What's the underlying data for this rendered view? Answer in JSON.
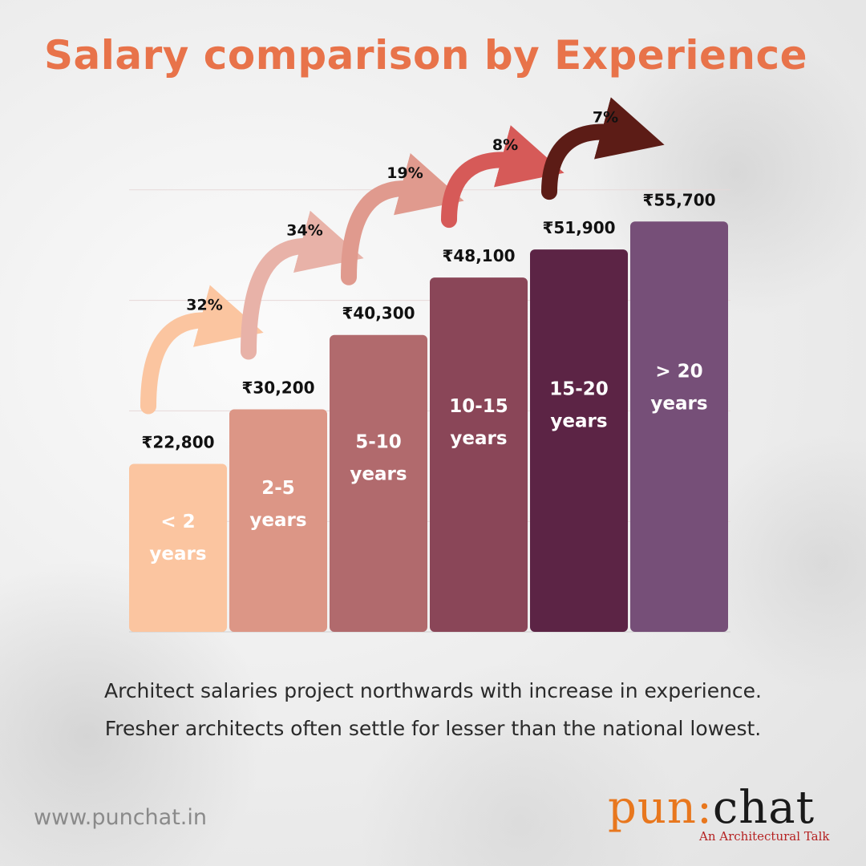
{
  "title": "Salary comparison by Experience",
  "caption": {
    "line1": "Architect salaries project northwards with increase in experience.",
    "line2": "Fresher architects often settle for lesser than the national lowest."
  },
  "footer": {
    "website": "www.punchat.in",
    "logo_pun": "pun",
    "logo_sep": ":",
    "logo_chat": "chat",
    "logo_subtitle": "An Architectural Talk"
  },
  "colors": {
    "title": "#e8734a",
    "bars": [
      "#fbc5a0",
      "#dc9686",
      "#b16a6d",
      "#8a4658",
      "#5c2445",
      "#764f78"
    ],
    "arrows": [
      "#fbc5a0",
      "#e8b2a8",
      "#e09a8e",
      "#d65a58",
      "#5c1c16"
    ]
  },
  "chart_data": {
    "type": "bar",
    "categories": [
      [
        "< 2",
        "years"
      ],
      [
        "2-5",
        "years"
      ],
      [
        "5-10",
        "years"
      ],
      [
        "10-15",
        "years"
      ],
      [
        "15-20",
        "years"
      ],
      [
        "> 20",
        "years"
      ]
    ],
    "values": [
      22800,
      30200,
      40300,
      48100,
      51900,
      55700
    ],
    "value_labels": [
      "₹22,800",
      "₹30,200",
      "₹40,300",
      "₹48,100",
      "₹51,900",
      "₹55,700"
    ],
    "growth_labels": [
      "32%",
      "34%",
      "19%",
      "8%",
      "7%"
    ],
    "ylim": [
      0,
      64000
    ],
    "grid": true
  }
}
